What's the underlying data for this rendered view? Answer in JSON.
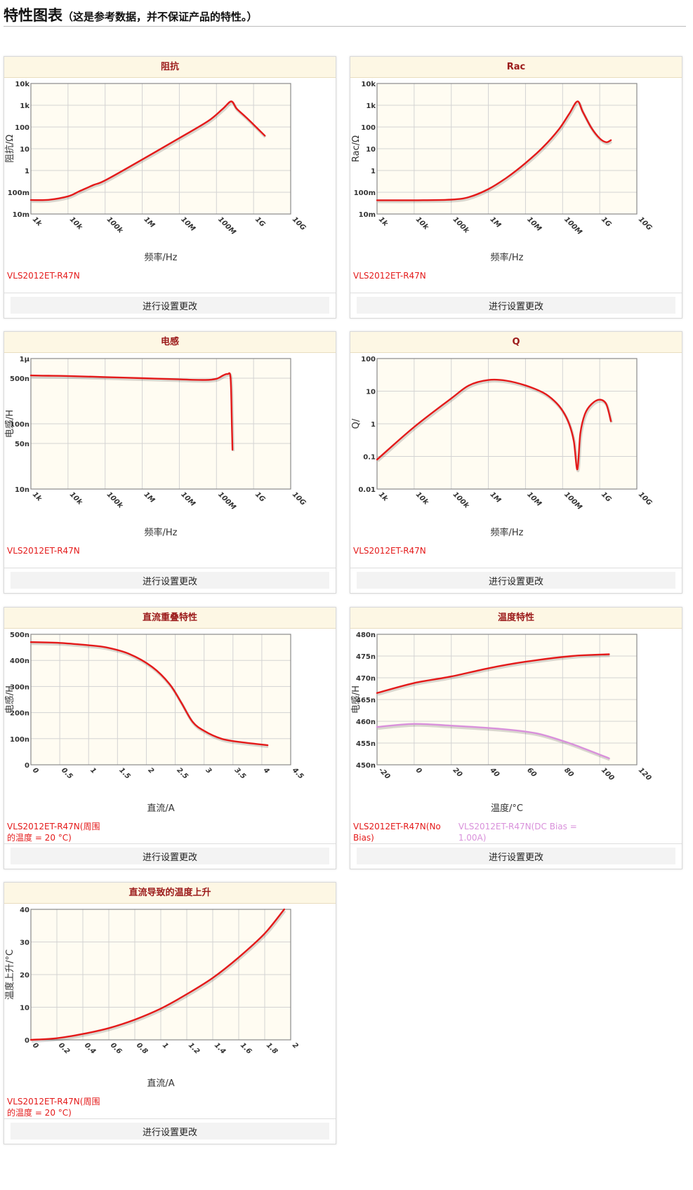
{
  "header": {
    "title": "特性图表",
    "subtitle": "（这是参考数据，并不保证产品的特性。）"
  },
  "panels": [
    {
      "title": "阻抗",
      "button_label": "进行设置更改",
      "legend": [
        {
          "label": "VLS2012ET-R47N",
          "color": "#e41a1a"
        }
      ],
      "chart_data": {
        "type": "line",
        "title": "阻抗",
        "xlabel": "频率/Hz",
        "ylabel": "阻抗/Ω",
        "xscale": "log",
        "yscale": "log",
        "xlim": [
          1000,
          10000000000
        ],
        "ylim": [
          0.01,
          10000
        ],
        "xticks": [
          1000,
          10000,
          100000,
          1000000,
          10000000,
          100000000,
          1000000000,
          10000000000
        ],
        "xtick_labels": [
          "1k",
          "10k",
          "100k",
          "1M",
          "10M",
          "100M",
          "1G",
          "10G"
        ],
        "yticks": [
          0.01,
          0.1,
          1,
          10,
          100,
          1000,
          10000
        ],
        "ytick_labels": [
          "10m",
          "100m",
          "1",
          "10",
          "100",
          "1k",
          "10k"
        ],
        "grid": true,
        "series": [
          {
            "name": "VLS2012ET-R47N",
            "color": "#e41a1a",
            "x": [
              1000,
              3000,
              10000,
              20000,
              50000,
              100000,
              1000000,
              10000000,
              60000000,
              150000000,
              250000000,
              350000000,
              600000000,
              1000000000,
              2000000000
            ],
            "y": [
              0.044,
              0.045,
              0.065,
              0.11,
              0.22,
              0.35,
              3.2,
              31,
              190,
              700,
              1500,
              700,
              300,
              130,
              40
            ]
          }
        ]
      }
    },
    {
      "title": "Rac",
      "button_label": "进行设置更改",
      "legend": [
        {
          "label": "VLS2012ET-R47N",
          "color": "#e41a1a"
        }
      ],
      "chart_data": {
        "type": "line",
        "title": "Rac",
        "xlabel": "频率/Hz",
        "ylabel": "Rac/Ω",
        "xscale": "log",
        "yscale": "log",
        "xlim": [
          1000,
          10000000000
        ],
        "ylim": [
          0.01,
          10000
        ],
        "xticks": [
          1000,
          10000,
          100000,
          1000000,
          10000000,
          100000000,
          1000000000,
          10000000000
        ],
        "xtick_labels": [
          "1k",
          "10k",
          "100k",
          "1M",
          "10M",
          "100M",
          "1G",
          "10G"
        ],
        "yticks": [
          0.01,
          0.1,
          1,
          10,
          100,
          1000,
          10000
        ],
        "ytick_labels": [
          "10m",
          "100m",
          "1",
          "10",
          "100",
          "1k",
          "10k"
        ],
        "grid": true,
        "series": [
          {
            "name": "VLS2012ET-R47N",
            "color": "#e41a1a",
            "x": [
              1000,
              10000,
              100000,
              300000,
              1000000,
              3000000,
              10000000,
              30000000,
              80000000,
              150000000,
              250000000,
              350000000,
              600000000,
              1000000000,
              1500000000,
              2000000000
            ],
            "y": [
              0.043,
              0.043,
              0.046,
              0.06,
              0.14,
              0.45,
              2.2,
              12,
              80,
              400,
              1500,
              500,
              90,
              30,
              20,
              25
            ]
          }
        ]
      }
    },
    {
      "title": "电感",
      "button_label": "进行设置更改",
      "legend": [
        {
          "label": "VLS2012ET-R47N",
          "color": "#e41a1a"
        }
      ],
      "chart_data": {
        "type": "line",
        "title": "电感",
        "xlabel": "频率/Hz",
        "ylabel": "电感/H",
        "xscale": "log",
        "yscale": "log",
        "xlim": [
          1000,
          10000000000
        ],
        "ylim": [
          1e-08,
          1e-06
        ],
        "xticks": [
          1000,
          10000,
          100000,
          1000000,
          10000000,
          100000000,
          1000000000,
          10000000000
        ],
        "xtick_labels": [
          "1k",
          "10k",
          "100k",
          "1M",
          "10M",
          "100M",
          "1G",
          "10G"
        ],
        "yticks": [
          1e-08,
          5e-08,
          1e-07,
          5e-07,
          1e-06
        ],
        "ytick_labels": [
          "10n",
          "50n",
          "100n",
          "500n",
          "1μ"
        ],
        "grid": true,
        "series": [
          {
            "name": "VLS2012ET-R47N",
            "color": "#e41a1a",
            "x": [
              1000,
              3000,
              10000,
              100000,
              1000000,
              10000000,
              50000000,
              100000000,
              150000000,
              200000000,
              240000000,
              260000000,
              270000000
            ],
            "y": [
              5.5e-07,
              5.45e-07,
              5.4e-07,
              5.2e-07,
              5e-07,
              4.8e-07,
              4.7e-07,
              4.9e-07,
              5.5e-07,
              5.8e-07,
              5e-07,
              1e-07,
              4e-08
            ]
          }
        ]
      }
    },
    {
      "title": "Q",
      "button_label": "进行设置更改",
      "legend": [
        {
          "label": "VLS2012ET-R47N",
          "color": "#e41a1a"
        }
      ],
      "chart_data": {
        "type": "line",
        "title": "Q",
        "xlabel": "频率/Hz",
        "ylabel": "Q/",
        "xscale": "log",
        "yscale": "log",
        "xlim": [
          1000,
          10000000000
        ],
        "ylim": [
          0.01,
          100
        ],
        "xticks": [
          1000,
          10000,
          100000,
          1000000,
          10000000,
          100000000,
          1000000000,
          10000000000
        ],
        "xtick_labels": [
          "1k",
          "10k",
          "100k",
          "1M",
          "10M",
          "100M",
          "1G",
          "10G"
        ],
        "yticks": [
          0.01,
          0.1,
          1,
          10,
          100
        ],
        "ytick_labels": [
          "0.01",
          "0.1",
          "1",
          "10",
          "100"
        ],
        "grid": true,
        "series": [
          {
            "name": "VLS2012ET-R47N",
            "color": "#e41a1a",
            "x": [
              1000,
              10000,
              100000,
              300000,
              1000000,
              3000000,
              10000000,
              30000000,
              60000000,
              100000000,
              150000000,
              200000000,
              250000000,
              300000000,
              400000000,
              600000000,
              1000000000,
              1500000000,
              2000000000
            ],
            "y": [
              0.08,
              0.8,
              6,
              15,
              22,
              21,
              15,
              9,
              5,
              2.5,
              1,
              0.3,
              0.04,
              0.5,
              2,
              4,
              5.5,
              4,
              1.2
            ]
          }
        ]
      }
    },
    {
      "title": "直流重叠特性",
      "button_label": "进行设置更改",
      "legend": [
        {
          "label": "VLS2012ET-R47N(周围的温度 = 20 °C)",
          "color": "#e41a1a"
        }
      ],
      "chart_data": {
        "type": "line",
        "title": "直流重叠特性",
        "xlabel": "直流/A",
        "ylabel": "电感/H",
        "xlim": [
          0,
          4.5
        ],
        "ylim": [
          0,
          5e-07
        ],
        "xticks": [
          0,
          0.5,
          1,
          1.5,
          2,
          2.5,
          3,
          3.5,
          4,
          4.5
        ],
        "xtick_labels": [
          "0",
          "0.5",
          "1",
          "1.5",
          "2",
          "2.5",
          "3",
          "3.5",
          "4",
          "4.5"
        ],
        "yticks": [
          0,
          1e-07,
          2e-07,
          3e-07,
          4e-07,
          5e-07
        ],
        "ytick_labels": [
          "0",
          "100n",
          "200n",
          "300n",
          "400n",
          "500n"
        ],
        "grid": true,
        "series": [
          {
            "name": "VLS2012ET-R47N(周围的温度 = 20 °C)",
            "color": "#e41a1a",
            "x": [
              0,
              0.5,
              1,
              1.3,
              1.7,
              2.1,
              2.4,
              2.6,
              2.8,
              3,
              3.3,
              3.6,
              4.1
            ],
            "y": [
              4.7e-07,
              4.67e-07,
              4.58e-07,
              4.5e-07,
              4.25e-07,
              3.75e-07,
              3.1e-07,
              2.4e-07,
              1.65e-07,
              1.3e-07,
              1e-07,
              8.8e-08,
              7.5e-08
            ]
          }
        ]
      }
    },
    {
      "title": "温度特性",
      "button_label": "进行设置更改",
      "legend": [
        {
          "label": "VLS2012ET-R47N(No Bias)",
          "color": "#e41a1a"
        },
        {
          "label": "VLS2012ET-R47N(DC Bias = 1.00A)",
          "color": "#d991db"
        }
      ],
      "chart_data": {
        "type": "line",
        "title": "温度特性",
        "xlabel": "温度/°C",
        "ylabel": "电感/H",
        "xlim": [
          -20,
          120
        ],
        "ylim": [
          4.5e-07,
          4.8e-07
        ],
        "xticks": [
          -20,
          0,
          20,
          40,
          60,
          80,
          100,
          120
        ],
        "xtick_labels": [
          "-20",
          "0",
          "20",
          "40",
          "60",
          "80",
          "100",
          "120"
        ],
        "yticks": [
          4.5e-07,
          4.55e-07,
          4.6e-07,
          4.65e-07,
          4.7e-07,
          4.75e-07,
          4.8e-07
        ],
        "ytick_labels": [
          "450n",
          "455n",
          "460n",
          "465n",
          "470n",
          "475n",
          "480n"
        ],
        "grid": true,
        "series": [
          {
            "name": "VLS2012ET-R47N(No Bias)",
            "color": "#e41a1a",
            "x": [
              -20,
              0,
              20,
              40,
              60,
              85,
              105
            ],
            "y": [
              4.665e-07,
              4.688e-07,
              4.703e-07,
              4.722e-07,
              4.737e-07,
              4.75e-07,
              4.754e-07
            ]
          },
          {
            "name": "VLS2012ET-R47N(DC Bias = 1.00A)",
            "color": "#d991db",
            "x": [
              -20,
              0,
              20,
              45,
              65,
              80,
              90,
              105
            ],
            "y": [
              4.587e-07,
              4.594e-07,
              4.59e-07,
              4.583e-07,
              4.573e-07,
              4.555e-07,
              4.54e-07,
              4.515e-07
            ]
          }
        ]
      }
    },
    {
      "title": "直流导致的温度上升",
      "button_label": "进行设置更改",
      "legend": [
        {
          "label": "VLS2012ET-R47N(周围的温度 = 20 °C)",
          "color": "#e41a1a"
        }
      ],
      "chart_data": {
        "type": "line",
        "title": "直流导致的温度上升",
        "xlabel": "直流/A",
        "ylabel": "温度上升/°C",
        "xlim": [
          0,
          2
        ],
        "ylim": [
          0,
          40
        ],
        "xticks": [
          0,
          0.2,
          0.4,
          0.6,
          0.8,
          1,
          1.2,
          1.4,
          1.6,
          1.8,
          2
        ],
        "xtick_labels": [
          "0",
          "0.2",
          "0.4",
          "0.6",
          "0.8",
          "1",
          "1.2",
          "1.4",
          "1.6",
          "1.8",
          "2"
        ],
        "yticks": [
          0,
          10,
          20,
          30,
          40
        ],
        "ytick_labels": [
          "0",
          "10",
          "20",
          "30",
          "40"
        ],
        "grid": true,
        "series": [
          {
            "name": "VLS2012ET-R47N(周围的温度 = 20 °C)",
            "color": "#e41a1a",
            "x": [
              0,
              0.2,
              0.4,
              0.6,
              0.8,
              1,
              1.2,
              1.4,
              1.6,
              1.8,
              1.95
            ],
            "y": [
              0,
              0.5,
              1.8,
              3.6,
              6.2,
              9.6,
              14,
              19,
              25.3,
              32.6,
              40
            ]
          }
        ]
      }
    }
  ]
}
